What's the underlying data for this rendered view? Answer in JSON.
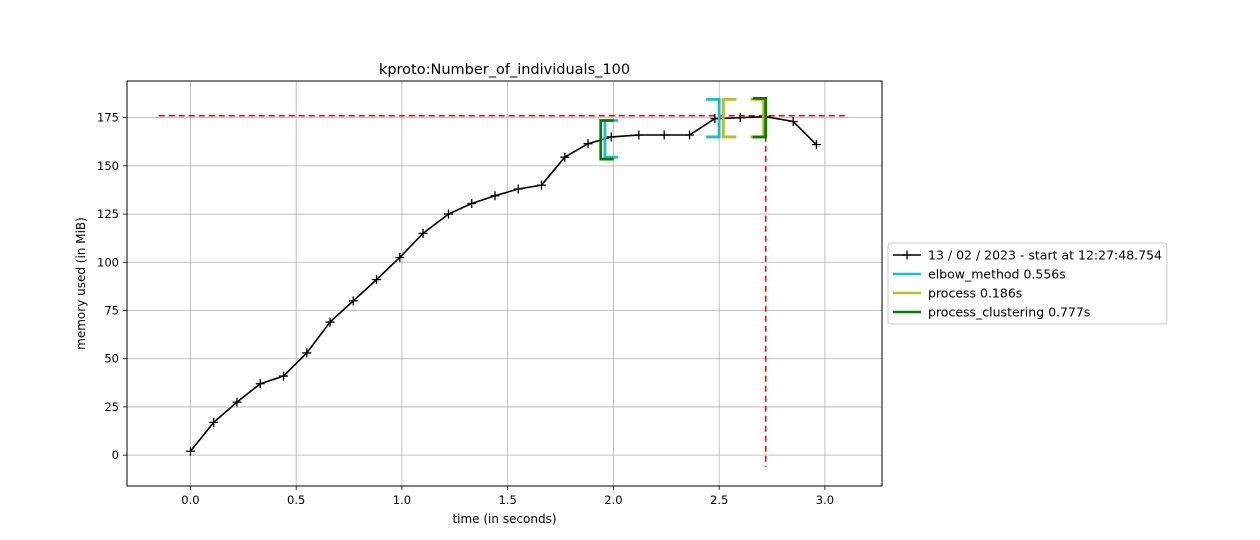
{
  "chart_data": {
    "type": "line",
    "title": "kproto:Number_of_individuals_100",
    "xlabel": "time (in seconds)",
    "ylabel": "memory used (in MiB)",
    "xlim": [
      -0.3,
      3.27
    ],
    "ylim": [
      -16,
      194
    ],
    "xticks": [
      0.0,
      0.5,
      1.0,
      1.5,
      2.0,
      2.5,
      3.0
    ],
    "xtick_labels": [
      "0.0",
      "0.5",
      "1.0",
      "1.5",
      "2.0",
      "2.5",
      "3.0"
    ],
    "yticks": [
      0,
      25,
      50,
      75,
      100,
      125,
      150,
      175
    ],
    "ytick_labels": [
      "0",
      "25",
      "50",
      "75",
      "100",
      "125",
      "150",
      "175"
    ],
    "grid": true,
    "legend_position": "right",
    "series": [
      {
        "name": "13 / 02 / 2023 - start at 12:27:48.754",
        "color": "#000000",
        "marker": "plus",
        "x": [
          0.0,
          0.11,
          0.22,
          0.33,
          0.44,
          0.55,
          0.66,
          0.77,
          0.88,
          0.99,
          1.1,
          1.22,
          1.33,
          1.44,
          1.55,
          1.66,
          1.77,
          1.88,
          1.99,
          2.12,
          2.24,
          2.36,
          2.48,
          2.6,
          2.72,
          2.85,
          2.96
        ],
        "y": [
          2,
          17,
          27.5,
          37,
          41,
          53,
          69,
          80,
          91,
          102.5,
          115,
          125,
          130.5,
          134.5,
          138,
          140,
          154.5,
          161.5,
          165,
          166,
          166,
          166,
          174.5,
          175,
          175.5,
          173,
          161
        ]
      }
    ],
    "brackets": [
      {
        "name": "elbow_method 0.556s",
        "color": "#17becf",
        "start": 1.96,
        "end": 2.5,
        "y_low": 154.5,
        "y_high": 173.5,
        "y_low_end": 165,
        "y_high_end": 184.5
      },
      {
        "name": "process 0.186s",
        "color": "#bcbd22",
        "start": 2.52,
        "end": 2.71,
        "y_low": 165,
        "y_high": 184.5,
        "y_low_end": 165,
        "y_high_end": 184.5
      },
      {
        "name": "process_clustering 0.777s",
        "color": "#008000",
        "start": 1.94,
        "end": 2.72,
        "y_low": 153.5,
        "y_high": 173.5,
        "y_low_end": 165,
        "y_high_end": 185
      }
    ],
    "max_memory_line": {
      "y": 176,
      "x_start": -0.15,
      "x_end": 3.1,
      "color": "#ff0000"
    },
    "max_time_line": {
      "x": 2.72,
      "y_start": -6,
      "y_end": 176,
      "color": "#ff0000"
    },
    "legend": [
      {
        "label": "13 / 02 / 2023 - start at 12:27:48.754",
        "color": "#000000",
        "kind": "line-plus"
      },
      {
        "label": "elbow_method 0.556s",
        "color": "#17becf",
        "kind": "line"
      },
      {
        "label": "process 0.186s",
        "color": "#bcbd22",
        "kind": "line"
      },
      {
        "label": "process_clustering 0.777s",
        "color": "#008000",
        "kind": "line"
      }
    ]
  }
}
